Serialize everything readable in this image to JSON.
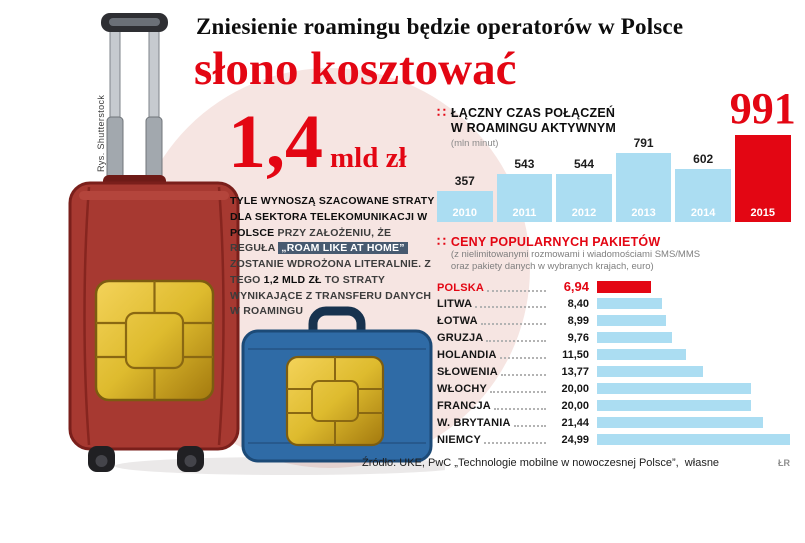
{
  "headline": {
    "line1": "Zniesienie roamingu będzie operatorów w Polsce",
    "line2": "słono kosztować"
  },
  "credit": "Rys. Shutterstock",
  "icons": {
    "section_bullet": "∷"
  },
  "loss": {
    "amount": "1,4",
    "unit": "mld zł",
    "desc": {
      "part1_bold": "TYLE WYNOSZĄ SZACOWANE STRATY DLA SEKTORA TELEKOMUNIKACJI W POLSCE",
      "part2": " PRZY ZAŁOŻENIU, ŻE REGUŁA ",
      "highlight": "„ROAM LIKE AT HOME”",
      "part3": " ZOSTANIE WDROŻONA LITERALNIE. Z TEGO ",
      "amount2": "1,2 MLD ZŁ",
      "part4": " TO STRATY WYNIKAJĄCE Z TRANSFERU DANYCH W ROAMINGU"
    }
  },
  "chart_data": [
    {
      "type": "bar",
      "title": "ŁĄCZNY CZAS POŁĄCZEŃ W ROAMINGU AKTYWNYM",
      "title_lines": [
        "ŁĄCZNY CZAS POŁĄCZEŃ",
        "W ROAMINGU AKTYWNYM"
      ],
      "unit": "(mln minut)",
      "categories": [
        "2010",
        "2011",
        "2012",
        "2013",
        "2014",
        "2015"
      ],
      "values": [
        357,
        543,
        544,
        791,
        602,
        991
      ],
      "highlight_category": "2015",
      "ylim": [
        0,
        991
      ],
      "bar_color": "#abddf2",
      "highlight_color": "#e30613",
      "legend_position": "none",
      "grid": false
    },
    {
      "type": "bar",
      "orientation": "horizontal",
      "title": "CENY POPULARNYCH PAKIETÓW",
      "subtitle_lines": [
        "(z nielimitowanymi rozmowami i wiadomościami SMS/MMS",
        "oraz pakiety danych w wybranych krajach, euro)"
      ],
      "categories": [
        "POLSKA",
        "LITWA",
        "ŁOTWA",
        "GRUZJA",
        "HOLANDIA",
        "SŁOWENIA",
        "WŁOCHY",
        "FRANCJA",
        "W. BRYTANIA",
        "NIEMCY"
      ],
      "values": [
        6.94,
        8.4,
        8.99,
        9.76,
        11.5,
        13.77,
        20,
        20,
        21.44,
        24.99
      ],
      "value_labels": [
        "6,94",
        "8,40",
        "8,99",
        "9,76",
        "11,50",
        "13,77",
        "20,00",
        "20,00",
        "21,44",
        "24,99"
      ],
      "highlight_category": "POLSKA",
      "xlim": [
        0,
        24.99
      ],
      "bar_color": "#abddf2",
      "highlight_color": "#e30613",
      "legend_position": "none",
      "grid": false
    }
  ],
  "footer": {
    "source": "Źródło: UKE, PwC „Technologie mobilne w nowoczesnej Polsce”,  własne",
    "initials": "ŁR"
  },
  "colors": {
    "accent_red": "#e30613",
    "bar_blue": "#abddf2",
    "circle_pink": "#f6e5e2"
  }
}
